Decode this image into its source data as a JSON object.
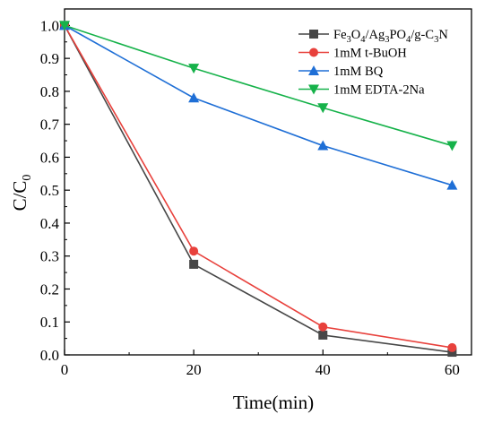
{
  "chart_data": {
    "type": "line",
    "title": "",
    "xlabel": "Time(min)",
    "ylabel_main": "C/C",
    "ylabel_sub": "0",
    "x": [
      0,
      20,
      40,
      60
    ],
    "xlim": [
      0,
      63
    ],
    "ylim": [
      0,
      1.05
    ],
    "xticks": [
      "0",
      "20",
      "40",
      "60"
    ],
    "yticks": [
      "0.0",
      "0.1",
      "0.2",
      "0.3",
      "0.4",
      "0.5",
      "0.6",
      "0.7",
      "0.8",
      "0.9",
      "1.0"
    ],
    "grid": false,
    "legend_position": "top-right",
    "series": [
      {
        "name_parts": [
          [
            "Fe",
            ""
          ],
          [
            "3",
            "sub"
          ],
          [
            "O",
            ""
          ],
          [
            "4",
            "sub"
          ],
          [
            "/Ag",
            ""
          ],
          [
            "3",
            "sub"
          ],
          [
            "PO",
            ""
          ],
          [
            "4",
            "sub"
          ],
          [
            "/g-C",
            ""
          ],
          [
            "3",
            "sub"
          ],
          [
            "N",
            ""
          ]
        ],
        "values": [
          1.0,
          0.275,
          0.06,
          0.008
        ],
        "color": "#474747",
        "marker": "square"
      },
      {
        "name": "1mM t-BuOH",
        "values": [
          1.0,
          0.315,
          0.085,
          0.022
        ],
        "color": "#e8413c",
        "marker": "circle"
      },
      {
        "name": "1mM BQ",
        "values": [
          1.0,
          0.78,
          0.635,
          0.515
        ],
        "color": "#1f6fd6",
        "marker": "triangle-up"
      },
      {
        "name": "1mM EDTA-2Na",
        "values": [
          1.0,
          0.87,
          0.75,
          0.635
        ],
        "color": "#16b24a",
        "marker": "triangle-down"
      }
    ]
  }
}
